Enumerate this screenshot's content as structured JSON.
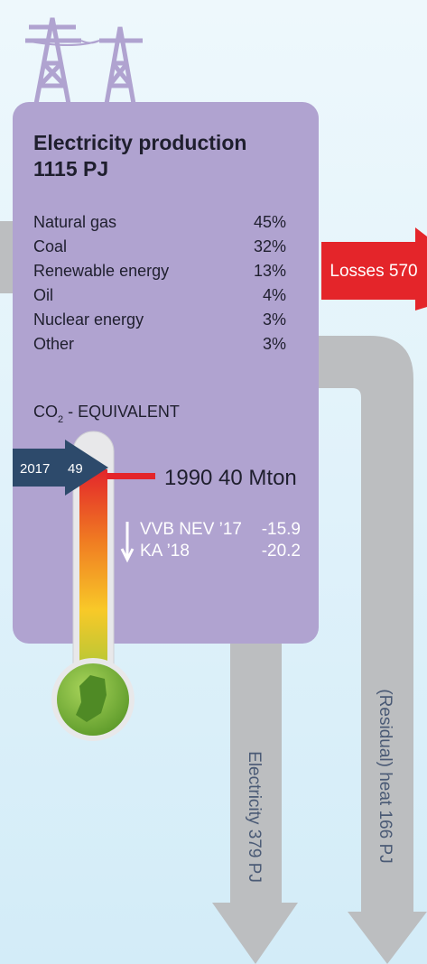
{
  "card": {
    "title": "Electricity production",
    "total": "1115 PJ",
    "mix": [
      {
        "label": "Natural gas",
        "share": "45%"
      },
      {
        "label": "Coal",
        "share": "32%"
      },
      {
        "label": "Renewable energy",
        "share": "13%"
      },
      {
        "label": "Oil",
        "share": "4%"
      },
      {
        "label": "Nuclear energy",
        "share": "3%"
      },
      {
        "label": "Other",
        "share": "3%"
      }
    ],
    "co2": {
      "main": "CO",
      "sub": "2",
      "rest": " - EQUIVALENT"
    },
    "current": {
      "year": "2017",
      "value": "49"
    },
    "reference": "1990 40 Mton",
    "targets": [
      {
        "label": "VVB NEV ’17",
        "value": "-15.9"
      },
      {
        "label": "KA ’18",
        "value": "-20.2"
      }
    ]
  },
  "flows": {
    "losses": "Losses 570",
    "electricity": "Electricity 379 PJ",
    "heat": "(Residual) heat 166 PJ"
  }
}
